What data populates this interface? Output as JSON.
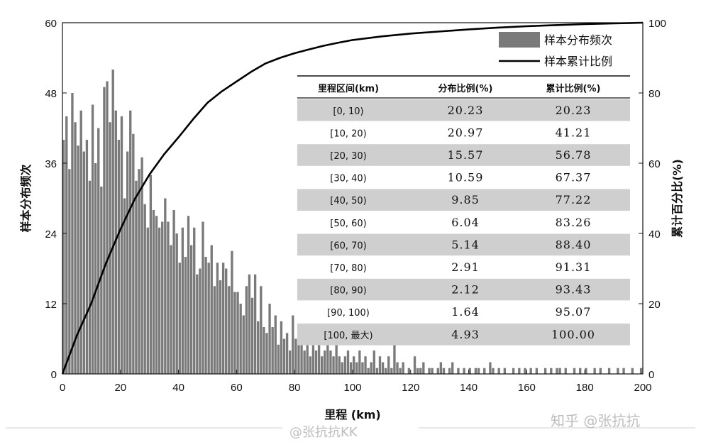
{
  "chart_data": {
    "type": "bar",
    "xlabel": "里程 (km)",
    "ylabel_left": "样本分布频次",
    "ylabel_right": "累计百分比(%)",
    "xlim": [
      0,
      200
    ],
    "ylim_left": [
      0,
      60
    ],
    "ylim_right": [
      0,
      100
    ],
    "x_ticks": [
      "0",
      "20",
      "40",
      "60",
      "80",
      "100",
      "120",
      "140",
      "160",
      "180",
      "200"
    ],
    "y_left_ticks": [
      "0",
      "12",
      "24",
      "36",
      "48",
      "60"
    ],
    "y_right_ticks": [
      "0",
      "20",
      "40",
      "60",
      "80",
      "100"
    ],
    "legend_location": "top-right",
    "bin_width_km": 1,
    "series": [
      {
        "name": "样本分布频次",
        "kind": "bar",
        "color": "#7a7a7a",
        "values": [
          40,
          44,
          35,
          48,
          43,
          39,
          45,
          38,
          40,
          33,
          46,
          36,
          42,
          32,
          49,
          50,
          43,
          52,
          45,
          40,
          44,
          30,
          38,
          45,
          41,
          33,
          35,
          37,
          29,
          25,
          34,
          28,
          27,
          25,
          26,
          30,
          26,
          22,
          28,
          24,
          19,
          25,
          20,
          27,
          22,
          25,
          17,
          18,
          26,
          20,
          19,
          22,
          15,
          19,
          16,
          19,
          18,
          15,
          21,
          14,
          14,
          12,
          10,
          15,
          17,
          13,
          17,
          9,
          15,
          8,
          7,
          12,
          8,
          10,
          5,
          9,
          6,
          7,
          4,
          10,
          6,
          5,
          8,
          4,
          6,
          3,
          5,
          4,
          5,
          3,
          4,
          6,
          4,
          3,
          5,
          3,
          2,
          3,
          4,
          2,
          3,
          2,
          4,
          2,
          3,
          1,
          2,
          4,
          1,
          3,
          2,
          1,
          3,
          1,
          5,
          2,
          1,
          2,
          0,
          1,
          0,
          3,
          1,
          1,
          2,
          0,
          1,
          1,
          0,
          1,
          2,
          1,
          0,
          1,
          2,
          0,
          1,
          0,
          1,
          0,
          1,
          0,
          1,
          1,
          0,
          1,
          0,
          2,
          1,
          0,
          1,
          0,
          1,
          0,
          0,
          1,
          0,
          1,
          0,
          1,
          0,
          1,
          0,
          1,
          0,
          0,
          1,
          0,
          1,
          0,
          1,
          1,
          0,
          1,
          0,
          0,
          1,
          0,
          1,
          0,
          1,
          0,
          0,
          1,
          0,
          1,
          0,
          0,
          1,
          0,
          0,
          1,
          0,
          1,
          0,
          0,
          1,
          0,
          0,
          1
        ]
      },
      {
        "name": "样本累计比例",
        "kind": "line",
        "color": "#000000",
        "x": [
          0,
          5,
          10,
          15,
          20,
          25,
          30,
          35,
          40,
          45,
          50,
          55,
          60,
          65,
          70,
          75,
          80,
          85,
          90,
          95,
          100,
          110,
          120,
          130,
          140,
          150,
          160,
          170,
          180,
          190,
          200
        ],
        "y": [
          0,
          11,
          20.23,
          31.5,
          41.21,
          49.9,
          56.78,
          62.5,
          67.37,
          72.5,
          77.22,
          80.5,
          83.26,
          86,
          88.4,
          90,
          91.31,
          92.4,
          93.43,
          94.3,
          95.07,
          96.1,
          96.9,
          97.5,
          98.1,
          98.6,
          99,
          99.3,
          99.6,
          99.8,
          100
        ]
      }
    ],
    "table": {
      "headers": [
        "里程区间(km)",
        "分布比例(%)",
        "累计比例(%)"
      ],
      "rows": [
        [
          "[0, 10)",
          "20.23",
          "20.23"
        ],
        [
          "[10, 20)",
          "20.97",
          "41.21"
        ],
        [
          "[20, 30)",
          "15.57",
          "56.78"
        ],
        [
          "[30, 40)",
          "10.59",
          "67.37"
        ],
        [
          "[40, 50)",
          "9.85",
          "77.22"
        ],
        [
          "[50, 60)",
          "6.04",
          "83.26"
        ],
        [
          "[60, 70)",
          "5.14",
          "88.40"
        ],
        [
          "[70, 80)",
          "2.91",
          "91.31"
        ],
        [
          "[80, 90)",
          "2.12",
          "93.43"
        ],
        [
          "[90, 100)",
          "1.64",
          "95.07"
        ],
        [
          "[100, 最大)",
          "4.93",
          "100.00"
        ]
      ],
      "stripe_color": "#cfcfcf"
    }
  },
  "watermarks": {
    "zhihu": "知乎 @张抗抗",
    "weibo": "@张抗抗KK"
  }
}
